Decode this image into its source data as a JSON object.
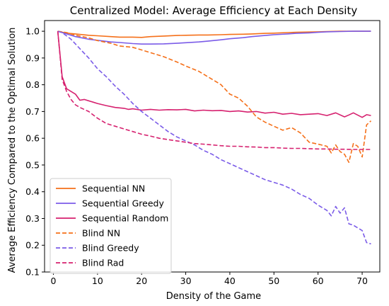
{
  "chart_data": {
    "type": "line",
    "title": "Centralized Model: Average Efficiency at Each Density",
    "xlabel": "Density of the Game",
    "ylabel": "Average Efficiency Compared to the Optimal Solution",
    "xlim": [
      -2,
      74
    ],
    "ylim": [
      0.1,
      1.04
    ],
    "xticks": [
      0,
      10,
      20,
      30,
      40,
      50,
      60,
      70
    ],
    "yticks": [
      0.1,
      0.2,
      0.3,
      0.4,
      0.5,
      0.6,
      0.7,
      0.8,
      0.9,
      1.0
    ],
    "ytick_labels": [
      "0.1",
      "0.2",
      "0.3",
      "0.4",
      "0.5",
      "0.6",
      "0.7",
      "0.8",
      "0.9",
      "1.0"
    ],
    "xtick_labels": [
      "0",
      "10",
      "20",
      "30",
      "40",
      "50",
      "60",
      "70"
    ],
    "grid": false,
    "legend_position": "lower-left",
    "series": [
      {
        "name": "Sequential NN",
        "color": "#f5701a",
        "dash": "solid",
        "x": [
          1,
          3,
          5,
          8,
          10,
          13,
          15,
          18,
          20,
          22,
          25,
          28,
          30,
          33,
          35,
          38,
          40,
          43,
          45,
          48,
          50,
          53,
          55,
          58,
          60,
          62,
          65,
          68,
          70,
          72
        ],
        "y": [
          1.0,
          0.993,
          0.99,
          0.985,
          0.983,
          0.98,
          0.978,
          0.978,
          0.977,
          0.98,
          0.982,
          0.984,
          0.985,
          0.986,
          0.986,
          0.987,
          0.988,
          0.989,
          0.99,
          0.992,
          0.993,
          0.995,
          0.996,
          0.997,
          0.998,
          0.999,
          1.0,
          1.0,
          1.0,
          1.0
        ]
      },
      {
        "name": "Sequential Greedy",
        "color": "#7b5ce8",
        "dash": "solid",
        "x": [
          1,
          3,
          5,
          8,
          10,
          13,
          15,
          18,
          20,
          22,
          25,
          28,
          30,
          33,
          35,
          38,
          40,
          43,
          45,
          48,
          50,
          53,
          55,
          58,
          60,
          62,
          65,
          68,
          70,
          72
        ],
        "y": [
          1.0,
          0.99,
          0.98,
          0.97,
          0.966,
          0.96,
          0.958,
          0.954,
          0.952,
          0.952,
          0.953,
          0.955,
          0.957,
          0.96,
          0.963,
          0.968,
          0.972,
          0.976,
          0.98,
          0.984,
          0.987,
          0.99,
          0.992,
          0.994,
          0.996,
          0.998,
          0.999,
          1.0,
          1.0,
          1.0
        ]
      },
      {
        "name": "Sequential Random",
        "color": "#d6216f",
        "dash": "solid",
        "x": [
          1,
          2,
          3,
          5,
          6,
          7,
          9,
          10,
          12,
          14,
          16,
          17,
          18,
          20,
          22,
          24,
          26,
          28,
          30,
          32,
          34,
          36,
          38,
          40,
          42,
          44,
          46,
          48,
          50,
          52,
          54,
          56,
          58,
          60,
          62,
          64,
          66,
          67,
          68,
          70,
          71,
          72
        ],
        "y": [
          1.0,
          0.83,
          0.785,
          0.765,
          0.742,
          0.745,
          0.735,
          0.73,
          0.722,
          0.715,
          0.712,
          0.708,
          0.71,
          0.705,
          0.708,
          0.705,
          0.707,
          0.706,
          0.708,
          0.702,
          0.705,
          0.703,
          0.704,
          0.7,
          0.702,
          0.698,
          0.7,
          0.694,
          0.697,
          0.69,
          0.693,
          0.688,
          0.69,
          0.692,
          0.685,
          0.695,
          0.68,
          0.687,
          0.695,
          0.678,
          0.688,
          0.685
        ]
      },
      {
        "name": "Blind NN",
        "color": "#f5701a",
        "dash": "dashed",
        "x": [
          1,
          3,
          5,
          8,
          10,
          13,
          15,
          18,
          20,
          23,
          25,
          28,
          30,
          33,
          35,
          38,
          40,
          42,
          44,
          46,
          48,
          50,
          52,
          54,
          56,
          58,
          60,
          62,
          63,
          64,
          65,
          66,
          67,
          68,
          69,
          70,
          71,
          72
        ],
        "y": [
          1.0,
          0.995,
          0.985,
          0.975,
          0.965,
          0.955,
          0.945,
          0.94,
          0.93,
          0.915,
          0.905,
          0.885,
          0.87,
          0.85,
          0.83,
          0.8,
          0.765,
          0.75,
          0.72,
          0.68,
          0.66,
          0.645,
          0.63,
          0.64,
          0.62,
          0.585,
          0.578,
          0.57,
          0.545,
          0.575,
          0.55,
          0.54,
          0.51,
          0.58,
          0.57,
          0.53,
          0.65,
          0.665
        ]
      },
      {
        "name": "Blind Greedy",
        "color": "#7b5ce8",
        "dash": "dashed",
        "x": [
          1,
          2,
          4,
          6,
          8,
          10,
          12,
          14,
          16,
          18,
          20,
          22,
          24,
          26,
          28,
          30,
          32,
          34,
          36,
          38,
          40,
          42,
          44,
          46,
          48,
          50,
          52,
          54,
          56,
          58,
          60,
          62,
          63,
          64,
          65,
          66,
          67,
          68,
          69,
          70,
          71,
          72
        ],
        "y": [
          1.0,
          0.995,
          0.97,
          0.935,
          0.9,
          0.86,
          0.83,
          0.795,
          0.765,
          0.73,
          0.7,
          0.675,
          0.65,
          0.625,
          0.605,
          0.59,
          0.575,
          0.555,
          0.54,
          0.52,
          0.505,
          0.49,
          0.475,
          0.46,
          0.445,
          0.435,
          0.425,
          0.41,
          0.39,
          0.375,
          0.35,
          0.33,
          0.31,
          0.345,
          0.32,
          0.34,
          0.28,
          0.275,
          0.265,
          0.255,
          0.21,
          0.205
        ]
      },
      {
        "name": "Blind Rad",
        "color": "#d6216f",
        "dash": "dashed",
        "x": [
          1,
          2,
          3,
          4,
          5,
          6,
          8,
          10,
          12,
          14,
          16,
          18,
          20,
          22,
          24,
          26,
          28,
          30,
          32,
          34,
          36,
          38,
          40,
          42,
          44,
          46,
          48,
          50,
          52,
          54,
          56,
          58,
          60,
          62,
          64,
          66,
          68,
          70,
          72
        ],
        "y": [
          1.0,
          0.82,
          0.775,
          0.745,
          0.725,
          0.715,
          0.7,
          0.675,
          0.655,
          0.645,
          0.635,
          0.625,
          0.615,
          0.608,
          0.6,
          0.595,
          0.59,
          0.585,
          0.58,
          0.578,
          0.575,
          0.572,
          0.57,
          0.57,
          0.568,
          0.567,
          0.565,
          0.565,
          0.563,
          0.562,
          0.562,
          0.561,
          0.56,
          0.56,
          0.559,
          0.559,
          0.558,
          0.558,
          0.558
        ]
      }
    ]
  }
}
